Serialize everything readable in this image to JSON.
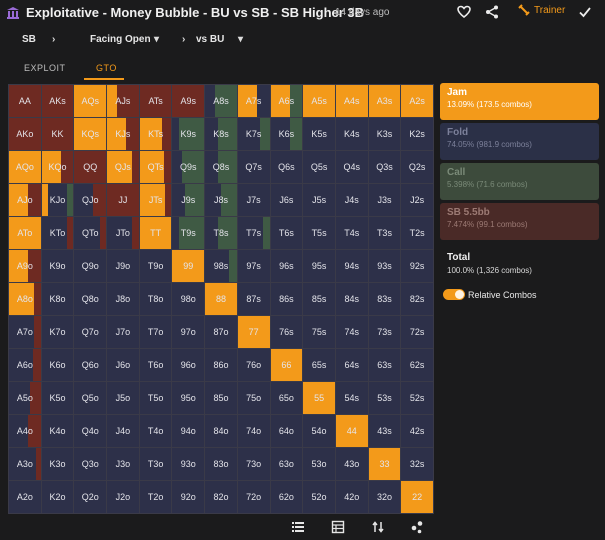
{
  "header": {
    "title": "Exploitative - Money Bubble - BU vs SB - SB Higher 3B",
    "time_ago": "14 days ago",
    "trainer_label": "Trainer"
  },
  "filters": [
    {
      "label": "SB"
    },
    {
      "label": "Facing Open"
    },
    {
      "label": "vs BU"
    }
  ],
  "tabs": [
    {
      "label": "EXPLOIT",
      "active": false
    },
    {
      "label": "GTO",
      "active": true
    }
  ],
  "colors": {
    "jam": "#f39a1a",
    "fold": "#2d3049",
    "call": "#3f5a44",
    "sb": "#6e2a22"
  },
  "actions": [
    {
      "name": "Jam",
      "value": "13.09% (173.5 combos)",
      "color": "#f39a1a",
      "text_color": "#ffffff"
    },
    {
      "name": "Fold",
      "value": "74.05% (981.9 combos)",
      "color": "#2b3047",
      "text_color": "#7c809a"
    },
    {
      "name": "Call",
      "value": "5.398% (71.6 combos)",
      "color": "#3d4b3c",
      "text_color": "#7a8a78"
    },
    {
      "name": "SB 5.5bb",
      "value": "7.474% (99.1 combos)",
      "color": "#4a2a27",
      "text_color": "#9c7a74"
    }
  ],
  "total": {
    "label": "Total",
    "value": "100.0% (1,326 combos)"
  },
  "relative_combos": {
    "label": "Relative Combos",
    "on": true
  },
  "grid": {
    "labels": [
      [
        "AA",
        "AKs",
        "AQs",
        "AJs",
        "ATs",
        "A9s",
        "A8s",
        "A7s",
        "A6s",
        "A5s",
        "A4s",
        "A3s",
        "A2s"
      ],
      [
        "AKo",
        "KK",
        "KQs",
        "KJs",
        "KTs",
        "K9s",
        "K8s",
        "K7s",
        "K6s",
        "K5s",
        "K4s",
        "K3s",
        "K2s"
      ],
      [
        "AQo",
        "KQo",
        "QQ",
        "QJs",
        "QTs",
        "Q9s",
        "Q8s",
        "Q7s",
        "Q6s",
        "Q5s",
        "Q4s",
        "Q3s",
        "Q2s"
      ],
      [
        "AJo",
        "KJo",
        "QJo",
        "JJ",
        "JTs",
        "J9s",
        "J8s",
        "J7s",
        "J6s",
        "J5s",
        "J4s",
        "J3s",
        "J2s"
      ],
      [
        "ATo",
        "KTo",
        "QTo",
        "JTo",
        "TT",
        "T9s",
        "T8s",
        "T7s",
        "T6s",
        "T5s",
        "T4s",
        "T3s",
        "T2s"
      ],
      [
        "A9o",
        "K9o",
        "Q9o",
        "J9o",
        "T9o",
        "99",
        "98s",
        "97s",
        "96s",
        "95s",
        "94s",
        "93s",
        "92s"
      ],
      [
        "A8o",
        "K8o",
        "Q8o",
        "J8o",
        "T8o",
        "98o",
        "88",
        "87s",
        "86s",
        "85s",
        "84s",
        "83s",
        "82s"
      ],
      [
        "A7o",
        "K7o",
        "Q7o",
        "J7o",
        "T7o",
        "97o",
        "87o",
        "77",
        "76s",
        "75s",
        "74s",
        "73s",
        "72s"
      ],
      [
        "A6o",
        "K6o",
        "Q6o",
        "J6o",
        "T6o",
        "96o",
        "86o",
        "76o",
        "66",
        "65s",
        "64s",
        "63s",
        "62s"
      ],
      [
        "A5o",
        "K5o",
        "Q5o",
        "J5o",
        "T5o",
        "95o",
        "85o",
        "75o",
        "65o",
        "55",
        "54s",
        "53s",
        "52s"
      ],
      [
        "A4o",
        "K4o",
        "Q4o",
        "J4o",
        "T4o",
        "94o",
        "84o",
        "74o",
        "64o",
        "54o",
        "44",
        "43s",
        "42s"
      ],
      [
        "A3o",
        "K3o",
        "Q3o",
        "J3o",
        "T3o",
        "93o",
        "83o",
        "73o",
        "63o",
        "53o",
        "43o",
        "33",
        "32s"
      ],
      [
        "A2o",
        "K2o",
        "Q2o",
        "J2o",
        "T2o",
        "92o",
        "82o",
        "72o",
        "62o",
        "52o",
        "42o",
        "32o",
        "22"
      ]
    ],
    "mix": {
      "AA": [
        0,
        0,
        0,
        100
      ],
      "AKs": [
        0,
        0,
        0,
        100
      ],
      "AQs": [
        100,
        0,
        0,
        0
      ],
      "AJs": [
        30,
        0,
        0,
        70
      ],
      "ATs": [
        0,
        0,
        0,
        100
      ],
      "A9s": [
        0,
        0,
        0,
        100
      ],
      "A8s": [
        0,
        30,
        70,
        0
      ],
      "A7s": [
        60,
        40,
        0,
        0
      ],
      "A6s": [
        60,
        0,
        40,
        0
      ],
      "A5s": [
        100,
        0,
        0,
        0
      ],
      "A4s": [
        100,
        0,
        0,
        0
      ],
      "A3s": [
        100,
        0,
        0,
        0
      ],
      "A2s": [
        100,
        0,
        0,
        0
      ],
      "AKo": [
        0,
        0,
        0,
        100
      ],
      "KK": [
        0,
        0,
        0,
        100
      ],
      "KQs": [
        100,
        0,
        0,
        0
      ],
      "KJs": [
        60,
        0,
        0,
        40
      ],
      "KTs": [
        70,
        0,
        0,
        30
      ],
      "K9s": [
        0,
        20,
        80,
        0
      ],
      "K8s": [
        0,
        40,
        60,
        0
      ],
      "K7s": [
        0,
        70,
        30,
        0
      ],
      "K6s": [
        0,
        60,
        40,
        0
      ],
      "AQo": [
        100,
        0,
        0,
        0
      ],
      "KQo": [
        60,
        0,
        0,
        40
      ],
      "QQ": [
        0,
        0,
        0,
        100
      ],
      "QJs": [
        80,
        0,
        0,
        20
      ],
      "QTs": [
        75,
        0,
        0,
        25
      ],
      "Q9s": [
        0,
        30,
        70,
        0
      ],
      "Q8s": [
        0,
        40,
        60,
        0
      ],
      "AJo": [
        60,
        0,
        0,
        40
      ],
      "KJo": [
        20,
        60,
        20,
        0
      ],
      "QJo": [
        0,
        60,
        0,
        40
      ],
      "JJ": [
        0,
        0,
        0,
        100
      ],
      "JTs": [
        80,
        0,
        0,
        20
      ],
      "J9s": [
        0,
        40,
        60,
        0
      ],
      "J8s": [
        0,
        50,
        50,
        0
      ],
      "ATo": [
        100,
        0,
        0,
        0
      ],
      "KTo": [
        0,
        80,
        0,
        20
      ],
      "QTo": [
        0,
        80,
        0,
        20
      ],
      "JTo": [
        0,
        80,
        0,
        20
      ],
      "TT": [
        100,
        0,
        0,
        0
      ],
      "T9s": [
        0,
        20,
        80,
        0
      ],
      "T8s": [
        0,
        40,
        60,
        0
      ],
      "T7s": [
        0,
        80,
        20,
        0
      ],
      "A9o": [
        60,
        0,
        0,
        40
      ],
      "99": [
        100,
        0,
        0,
        0
      ],
      "98s": [
        0,
        75,
        25,
        0
      ],
      "A8o": [
        80,
        0,
        0,
        20
      ],
      "88": [
        100,
        0,
        0,
        0
      ],
      "A7o": [
        0,
        80,
        0,
        20
      ],
      "77": [
        100,
        0,
        0,
        0
      ],
      "A6o": [
        0,
        75,
        0,
        25
      ],
      "66": [
        100,
        0,
        0,
        0
      ],
      "A5o": [
        0,
        65,
        0,
        35
      ],
      "55": [
        100,
        0,
        0,
        0
      ],
      "A4o": [
        0,
        60,
        0,
        40
      ],
      "44": [
        100,
        0,
        0,
        0
      ],
      "A3o": [
        0,
        85,
        0,
        15
      ],
      "33": [
        100,
        0,
        0,
        0
      ],
      "A2o": [
        0,
        100,
        0,
        0
      ],
      "22": [
        100,
        0,
        0,
        0
      ]
    }
  },
  "bottom_icons": [
    "list-icon",
    "table-icon",
    "sort-icon",
    "share-nodes-icon"
  ]
}
